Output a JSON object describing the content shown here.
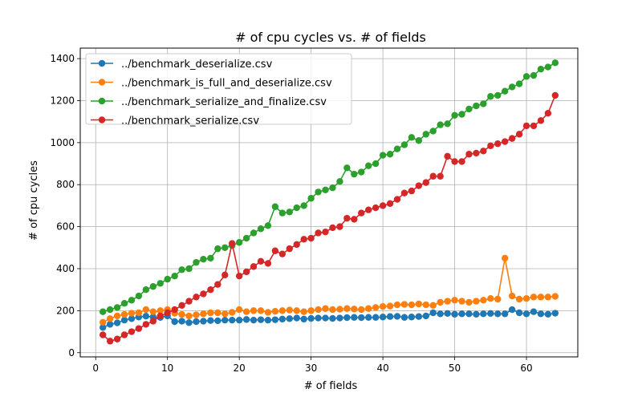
{
  "chart_data": {
    "type": "line",
    "title": "# of cpu cycles vs. # of fields",
    "xlabel": "# of fields",
    "ylabel": "# of cpu cycles",
    "xlim": [
      -2.15,
      67.15
    ],
    "ylim": [
      -20,
      1450
    ],
    "xticks": [
      0,
      10,
      20,
      30,
      40,
      50,
      60
    ],
    "yticks": [
      0,
      200,
      400,
      600,
      800,
      1000,
      1200,
      1400
    ],
    "grid": true,
    "legend_position": "top-left",
    "x": [
      1,
      2,
      3,
      4,
      5,
      6,
      7,
      8,
      9,
      10,
      11,
      12,
      13,
      14,
      15,
      16,
      17,
      18,
      19,
      20,
      21,
      22,
      23,
      24,
      25,
      26,
      27,
      28,
      29,
      30,
      31,
      32,
      33,
      34,
      35,
      36,
      37,
      38,
      39,
      40,
      41,
      42,
      43,
      44,
      45,
      46,
      47,
      48,
      49,
      50,
      51,
      52,
      53,
      54,
      55,
      56,
      57,
      58,
      59,
      60,
      61,
      62,
      63,
      64
    ],
    "series": [
      {
        "name": "../benchmark_deserialize.csv",
        "color": "#1f77b4",
        "values": [
          120,
          135,
          142,
          155,
          162,
          170,
          174,
          170,
          168,
          175,
          148,
          150,
          143,
          148,
          150,
          153,
          152,
          155,
          155,
          155,
          158,
          155,
          157,
          155,
          157,
          160,
          162,
          165,
          160,
          163,
          165,
          165,
          163,
          165,
          167,
          168,
          167,
          168,
          168,
          170,
          172,
          173,
          168,
          170,
          172,
          175,
          190,
          185,
          187,
          183,
          185,
          185,
          183,
          185,
          187,
          185,
          185,
          205,
          190,
          185,
          195,
          185,
          183,
          188
        ]
      },
      {
        "name": "../benchmark_is_full_and_deserialize.csv",
        "color": "#ff7f0e",
        "values": [
          145,
          162,
          175,
          182,
          188,
          190,
          205,
          195,
          200,
          205,
          188,
          182,
          175,
          180,
          185,
          190,
          190,
          185,
          192,
          205,
          195,
          200,
          200,
          192,
          197,
          200,
          203,
          200,
          195,
          200,
          205,
          210,
          205,
          207,
          210,
          208,
          205,
          210,
          215,
          220,
          222,
          228,
          230,
          228,
          232,
          228,
          225,
          240,
          245,
          250,
          245,
          240,
          245,
          250,
          258,
          255,
          450,
          270,
          255,
          258,
          265,
          265,
          265,
          268
        ]
      },
      {
        "name": "../benchmark_serialize_and_finalize.csv",
        "color": "#2ca02c",
        "values": [
          195,
          205,
          215,
          235,
          250,
          270,
          300,
          315,
          330,
          350,
          365,
          395,
          400,
          430,
          445,
          450,
          495,
          500,
          510,
          525,
          545,
          570,
          590,
          605,
          695,
          665,
          670,
          690,
          700,
          735,
          765,
          775,
          785,
          815,
          880,
          850,
          860,
          890,
          900,
          940,
          945,
          970,
          990,
          1025,
          1010,
          1040,
          1055,
          1085,
          1090,
          1130,
          1135,
          1160,
          1175,
          1185,
          1220,
          1225,
          1245,
          1265,
          1280,
          1315,
          1320,
          1350,
          1360,
          1380
        ]
      },
      {
        "name": "../benchmark_serialize.csv",
        "color": "#d62728",
        "values": [
          85,
          55,
          65,
          85,
          100,
          115,
          135,
          150,
          175,
          190,
          205,
          225,
          245,
          265,
          280,
          300,
          325,
          370,
          520,
          365,
          385,
          410,
          435,
          425,
          485,
          470,
          495,
          515,
          540,
          545,
          570,
          575,
          595,
          600,
          640,
          635,
          665,
          680,
          690,
          700,
          710,
          730,
          760,
          770,
          795,
          810,
          840,
          840,
          935,
          910,
          910,
          945,
          950,
          960,
          985,
          995,
          1005,
          1020,
          1040,
          1080,
          1080,
          1105,
          1140,
          1225
        ]
      }
    ]
  }
}
